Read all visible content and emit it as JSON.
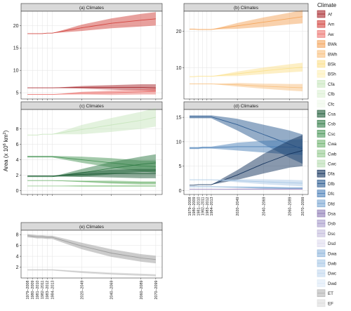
{
  "chart_data": {
    "type": "area",
    "ylabel": "Area (x 10",
    "ylabel_unit_exp": "6",
    "ylabel_unit_tail": " km",
    "ylabel_unit_sq": "2",
    "ylabel_close": ")",
    "x_tick_labels": [
      "1979–2008",
      "1980–2009",
      "1981–2010",
      "1982–2011",
      "1983–2012",
      "1984–2013",
      "2020–2049",
      "2040–2069",
      "2060–2089",
      "2070–2099"
    ],
    "x_positions": [
      1,
      2,
      3,
      4,
      5,
      6,
      12,
      18,
      24,
      27
    ],
    "legend": {
      "title": "Climate",
      "entries": [
        {
          "label": "Af",
          "color": "#a8282d"
        },
        {
          "label": "Am",
          "color": "#d2413c"
        },
        {
          "label": "Aw",
          "color": "#ec7470"
        },
        {
          "label": "BWk",
          "color": "#f4a45a"
        },
        {
          "label": "BWh",
          "color": "#f8c07f"
        },
        {
          "label": "BSk",
          "color": "#fbe08c"
        },
        {
          "label": "BSh",
          "color": "#fdf0b8"
        },
        {
          "label": "Cfa",
          "color": "#c8e6be"
        },
        {
          "label": "Cfb",
          "color": "#dcf0d4"
        },
        {
          "label": "Cfc",
          "color": "#eef8ea"
        },
        {
          "label": "Csa",
          "color": "#1d5a35"
        },
        {
          "label": "Csb",
          "color": "#2f7a45"
        },
        {
          "label": "Csc",
          "color": "#4a9658"
        },
        {
          "label": "Cwa",
          "color": "#6fb36f"
        },
        {
          "label": "Cwb",
          "color": "#94c98f"
        },
        {
          "label": "Cwc",
          "color": "#b8dcb2"
        },
        {
          "label": "Dfa",
          "color": "#12325c"
        },
        {
          "label": "Dfb",
          "color": "#2a5a90"
        },
        {
          "label": "Dfc",
          "color": "#4a7fb8"
        },
        {
          "label": "Dfd",
          "color": "#7aa6d2"
        },
        {
          "label": "Dsa",
          "color": "#8e7bb5"
        },
        {
          "label": "Dsb",
          "color": "#a99ccb"
        },
        {
          "label": "Dsc",
          "color": "#c4bcdc"
        },
        {
          "label": "Dsd",
          "color": "#e0dcee"
        },
        {
          "label": "Dwa",
          "color": "#8fb6dc"
        },
        {
          "label": "Dwb",
          "color": "#a9c8e6"
        },
        {
          "label": "Dwc",
          "color": "#c3d9ef"
        },
        {
          "label": "Dwd",
          "color": "#dde9f6"
        },
        {
          "label": "ET",
          "color": "#b4b4b4"
        },
        {
          "label": "EF",
          "color": "#dcdcdc"
        }
      ]
    },
    "panels": [
      {
        "title": "(a) Climates",
        "ylim": [
          3.6,
          23.2
        ],
        "yticks": [
          5,
          10,
          15,
          20
        ],
        "series": [
          {
            "color": "#d2413c",
            "values": [
              18.2,
              18.2,
              18.2,
              18.2,
              18.3,
              18.3,
              19.5,
              20.5,
              21.2,
              21.5
            ],
            "bands": [
              0,
              0,
              0,
              0,
              0,
              0,
              0.7,
              1.1,
              1.4,
              1.5
            ]
          },
          {
            "color": "#a8282d",
            "values": [
              6.1,
              6.1,
              6.1,
              6.1,
              6.1,
              6.1,
              6.2,
              6.2,
              6.2,
              6.1
            ],
            "bands": [
              0,
              0,
              0,
              0,
              0,
              0,
              0.3,
              0.5,
              0.7,
              0.8
            ]
          },
          {
            "color": "#ec7470",
            "values": [
              4.6,
              4.6,
              4.6,
              4.6,
              4.6,
              4.6,
              4.9,
              5.0,
              5.2,
              5.3
            ],
            "bands": [
              0,
              0,
              0,
              0,
              0,
              0,
              0.3,
              0.5,
              0.6,
              0.7
            ]
          }
        ]
      },
      {
        "title": "(b) Climates",
        "ylim": [
          1.5,
          25.5
        ],
        "yticks": [
          10,
          20
        ],
        "series": [
          {
            "color": "#f4a45a",
            "values": [
              20.6,
              20.6,
              20.5,
              20.5,
              20.5,
              20.5,
              21.5,
              22.5,
              23.5,
              24.0
            ],
            "bands": [
              0,
              0,
              0,
              0,
              0,
              0,
              0.8,
              1.3,
              1.6,
              1.8
            ]
          },
          {
            "color": "#fbe08c",
            "values": [
              7.6,
              7.6,
              7.7,
              7.7,
              7.7,
              7.7,
              8.4,
              9.2,
              9.9,
              10.2
            ],
            "bands": [
              0,
              0,
              0,
              0,
              0,
              0,
              0.6,
              0.9,
              1.1,
              1.2
            ]
          },
          {
            "color": "#f8c07f",
            "values": [
              5.6,
              5.6,
              5.6,
              5.6,
              5.6,
              5.6,
              5.4,
              5.0,
              4.7,
              4.6
            ],
            "bands": [
              0,
              0,
              0,
              0,
              0,
              0,
              0.5,
              0.7,
              0.9,
              1.0
            ]
          }
        ]
      },
      {
        "title": "(c) Climates",
        "ylim": [
          -0.5,
          10.5
        ],
        "yticks": [
          0,
          2,
          4,
          6,
          8
        ],
        "series": [
          {
            "color": "#c8e6be",
            "values": [
              7.2,
              7.2,
              7.2,
              7.3,
              7.3,
              7.3,
              7.9,
              8.5,
              9.1,
              9.5
            ],
            "bands": [
              0,
              0,
              0,
              0,
              0,
              0,
              0.6,
              0.9,
              1.1,
              1.2
            ]
          },
          {
            "color": "#4a9658",
            "values": [
              4.4,
              4.4,
              4.4,
              4.4,
              4.4,
              4.4,
              4.0,
              3.6,
              3.2,
              3.1
            ],
            "bands": [
              0.1,
              0.1,
              0.1,
              0.1,
              0.1,
              0.1,
              0.4,
              0.6,
              0.7,
              0.8
            ]
          },
          {
            "color": "#2f7a45",
            "values": [
              1.8,
              1.8,
              1.8,
              1.8,
              1.8,
              1.8,
              2.3,
              2.9,
              3.4,
              3.6
            ],
            "bands": [
              0,
              0,
              0,
              0,
              0,
              0,
              0.5,
              0.8,
              1.0,
              1.1
            ]
          },
          {
            "color": "#1d5a35",
            "values": [
              1.9,
              1.9,
              1.9,
              1.9,
              1.9,
              1.9,
              2.1,
              2.2,
              2.2,
              2.2
            ],
            "bands": [
              0,
              0,
              0,
              0,
              0,
              0,
              0.3,
              0.5,
              0.6,
              0.6
            ]
          },
          {
            "color": "#6fb36f",
            "values": [
              1.3,
              1.3,
              1.3,
              1.3,
              1.3,
              1.3,
              1.2,
              1.1,
              1.0,
              1.0
            ],
            "bands": [
              0,
              0,
              0,
              0,
              0,
              0,
              0.1,
              0.2,
              0.2,
              0.2
            ]
          },
          {
            "color": "#94c98f",
            "values": [
              0.6,
              0.6,
              0.6,
              0.6,
              0.6,
              0.6,
              0.6,
              0.6,
              0.6,
              0.6
            ],
            "bands": [
              0,
              0,
              0,
              0,
              0,
              0,
              0.1,
              0.1,
              0.1,
              0.1
            ]
          }
        ]
      },
      {
        "title": "(d) Climates",
        "ylim": [
          -0.8,
          16.6
        ],
        "yticks": [
          0,
          5,
          10,
          15
        ],
        "series": [
          {
            "color": "#2a5a90",
            "values": [
              15.1,
              15.1,
              15.1,
              15.1,
              15.1,
              15.1,
              13.5,
              11.5,
              9.5,
              8.5
            ],
            "bands": [
              0.3,
              0.3,
              0.3,
              0.3,
              0.3,
              0.3,
              1.2,
              2.0,
              2.8,
              3.0
            ]
          },
          {
            "color": "#4a7fb8",
            "values": [
              8.7,
              8.7,
              8.7,
              8.8,
              8.8,
              8.8,
              9.0,
              9.0,
              8.9,
              8.9
            ],
            "bands": [
              0.2,
              0.2,
              0.2,
              0.2,
              0.2,
              0.2,
              0.8,
              1.2,
              1.5,
              1.6
            ]
          },
          {
            "color": "#12325c",
            "values": [
              1.1,
              1.1,
              1.2,
              1.2,
              1.2,
              1.2,
              3.2,
              5.5,
              7.5,
              8.2
            ],
            "bands": [
              0,
              0,
              0,
              0,
              0,
              0,
              1.0,
              2.0,
              2.8,
              3.2
            ]
          },
          {
            "color": "#a9c8e6",
            "values": [
              2.2,
              2.2,
              2.2,
              2.2,
              2.2,
              2.2,
              2.0,
              1.8,
              1.6,
              1.5
            ],
            "bands": [
              0,
              0,
              0,
              0,
              0,
              0,
              0.3,
              0.5,
              0.6,
              0.6
            ]
          },
          {
            "color": "#7aa6d2",
            "values": [
              0.8,
              0.8,
              0.8,
              0.8,
              0.8,
              0.8,
              0.7,
              0.6,
              0.5,
              0.5
            ],
            "bands": [
              0,
              0,
              0,
              0,
              0,
              0,
              0.1,
              0.2,
              0.2,
              0.2
            ]
          },
          {
            "color": "#8e7bb5",
            "values": [
              0.3,
              0.3,
              0.3,
              0.3,
              0.3,
              0.3,
              0.3,
              0.3,
              0.3,
              0.3
            ],
            "bands": [
              0,
              0,
              0,
              0,
              0,
              0,
              0.1,
              0.1,
              0.1,
              0.1
            ]
          }
        ]
      },
      {
        "title": "(e) Climates",
        "ylim": [
          0,
          8.8
        ],
        "yticks": [
          2,
          4,
          6,
          8
        ],
        "series": [
          {
            "color": "#9a9a9a",
            "values": [
              7.8,
              7.7,
              7.6,
              7.6,
              7.5,
              7.5,
              5.9,
              4.6,
              3.7,
              3.4
            ],
            "bands": [
              0.3,
              0.3,
              0.3,
              0.3,
              0.3,
              0.3,
              0.6,
              0.7,
              0.7,
              0.7
            ]
          },
          {
            "color": "#c4c4c4",
            "values": [
              1.5,
              1.5,
              1.5,
              1.5,
              1.5,
              1.5,
              1.1,
              0.8,
              0.6,
              0.5
            ],
            "bands": [
              0.1,
              0.1,
              0.1,
              0.1,
              0.1,
              0.1,
              0.2,
              0.2,
              0.2,
              0.2
            ]
          }
        ]
      }
    ]
  }
}
